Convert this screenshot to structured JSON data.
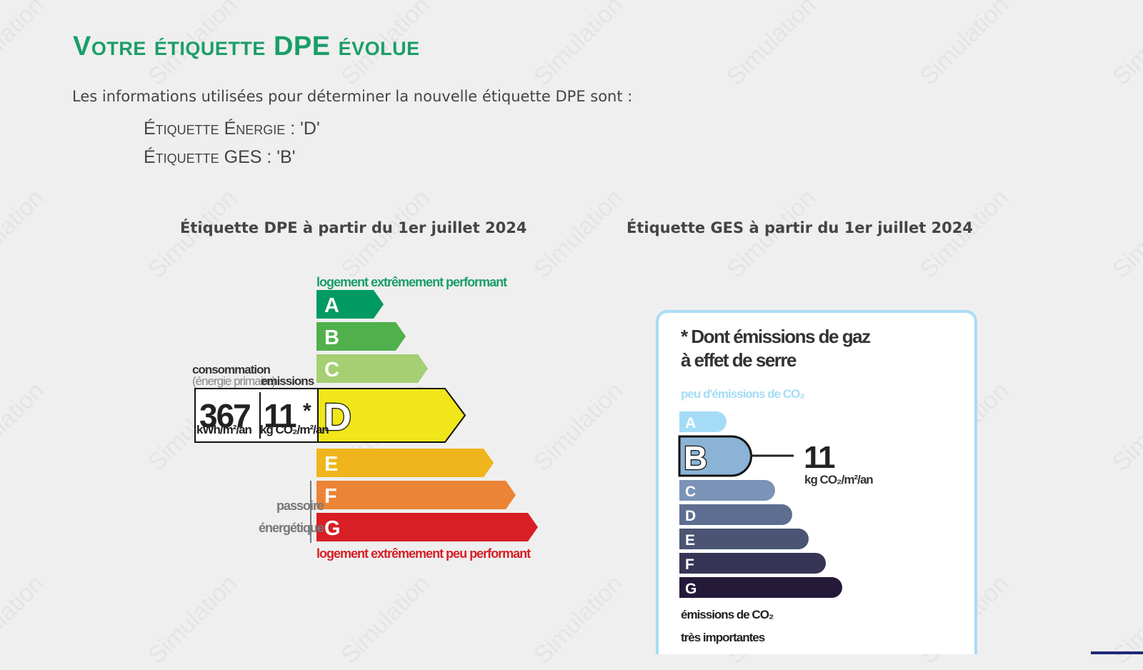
{
  "watermark": "Simulation",
  "heading": "Votre étiquette DPE évolue",
  "intro": "Les informations utilisées pour déterminer la nouvelle étiquette DPE sont :",
  "info": [
    {
      "text": "Étiquette Énergie : 'D'"
    },
    {
      "text": "Étiquette GES : 'B'"
    }
  ],
  "dpe": {
    "title": "Étiquette DPE à partir du 1er juillet 2024",
    "top_caption": "logement extrêmement performant",
    "bottom_caption": "logement extrêmement peu performant",
    "consumption_label": "consommation",
    "primary_label": "(énergie primaire)",
    "emissions_label": "emissions",
    "consumption_value": "367",
    "consumption_unit": "kWh/m²/an",
    "emissions_value": "11",
    "asterisk": "*",
    "emissions_unit": "kg CO₂/m²/an",
    "passoire_line1": "passoire",
    "passoire_line2": "énergétique",
    "current_class": "D",
    "classes": [
      {
        "letter": "A",
        "color": "#009a62"
      },
      {
        "letter": "B",
        "color": "#50b04b"
      },
      {
        "letter": "C",
        "color": "#a4cf73"
      },
      {
        "letter": "D",
        "color": "#f0e61a"
      },
      {
        "letter": "E",
        "color": "#f0b51c"
      },
      {
        "letter": "F",
        "color": "#eb8435"
      },
      {
        "letter": "G",
        "color": "#d71f24"
      }
    ]
  },
  "ges": {
    "title": "Étiquette GES à partir du 1er juillet 2024",
    "heading_line1": "* Dont émissions de gaz",
    "heading_line2": "à effet de serre",
    "top_caption": "peu d'émissions de CO₂",
    "bottom_line1": "émissions de CO₂",
    "bottom_line2": "très importantes",
    "value": "11",
    "unit": "kg CO₂/m²/an",
    "current_class": "B",
    "classes": [
      {
        "letter": "A",
        "color": "#a4dcf6"
      },
      {
        "letter": "B",
        "color": "#8bb3d6"
      },
      {
        "letter": "C",
        "color": "#7a93b7"
      },
      {
        "letter": "D",
        "color": "#5d6e90"
      },
      {
        "letter": "E",
        "color": "#4b5473"
      },
      {
        "letter": "F",
        "color": "#363555"
      },
      {
        "letter": "G",
        "color": "#25193a"
      }
    ]
  }
}
